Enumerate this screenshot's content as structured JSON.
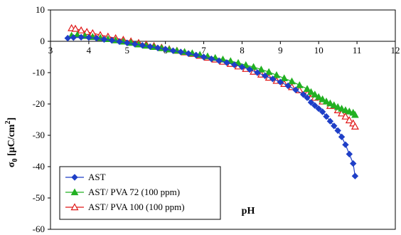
{
  "chart_data": {
    "type": "scatter",
    "xlabel": "pH",
    "ylabel_main": "σ",
    "ylabel_sub": "0",
    "ylabel_rest": " [μC/cm",
    "ylabel_sup": "2",
    "ylabel_end": "]",
    "xlim": [
      3,
      12
    ],
    "ylim": [
      -60,
      10
    ],
    "x_ticks": [
      3,
      4,
      5,
      6,
      7,
      8,
      9,
      10,
      11,
      12
    ],
    "y_ticks": [
      10,
      0,
      -10,
      -20,
      -30,
      -40,
      -50,
      -60
    ],
    "grid": false,
    "legend_position": "bottom-left",
    "series": [
      {
        "name": "AST",
        "color": "#1f3fc7",
        "marker": "diamond",
        "x": [
          3.45,
          3.6,
          3.8,
          4.0,
          4.2,
          4.4,
          4.6,
          4.8,
          5.0,
          5.2,
          5.4,
          5.6,
          5.8,
          6.0,
          6.2,
          6.4,
          6.6,
          6.8,
          7.0,
          7.2,
          7.4,
          7.6,
          7.8,
          8.0,
          8.2,
          8.4,
          8.6,
          8.8,
          9.0,
          9.2,
          9.4,
          9.6,
          9.7,
          9.8,
          9.9,
          10.0,
          10.1,
          10.2,
          10.3,
          10.4,
          10.5,
          10.6,
          10.7,
          10.8,
          10.9,
          10.95
        ],
        "y": [
          1.0,
          1.2,
          1.3,
          1.2,
          1.0,
          0.6,
          0.3,
          -0.1,
          -0.5,
          -0.9,
          -1.3,
          -1.7,
          -2.1,
          -2.5,
          -3.0,
          -3.4,
          -3.9,
          -4.4,
          -5.0,
          -5.6,
          -6.2,
          -6.8,
          -7.5,
          -8.2,
          -9.0,
          -10.0,
          -11.0,
          -12.0,
          -13.0,
          -14.2,
          -15.5,
          -17.0,
          -18.0,
          -19.5,
          -20.5,
          -21.5,
          -22.5,
          -24.0,
          -25.5,
          -27.0,
          -28.5,
          -30.5,
          -33.0,
          -36.0,
          -39.0,
          -43.0
        ]
      },
      {
        "name": "AST/ PVA 72 (100 ppm)",
        "color": "#22b022",
        "marker": "triangle-filled",
        "x": [
          3.55,
          3.7,
          3.9,
          4.1,
          4.3,
          4.5,
          4.7,
          4.9,
          5.1,
          5.3,
          5.5,
          5.7,
          5.9,
          6.1,
          6.3,
          6.5,
          6.7,
          6.9,
          7.1,
          7.3,
          7.5,
          7.7,
          7.9,
          8.1,
          8.3,
          8.5,
          8.7,
          8.9,
          9.1,
          9.3,
          9.5,
          9.7,
          9.8,
          9.9,
          10.0,
          10.1,
          10.2,
          10.3,
          10.4,
          10.5,
          10.6,
          10.7,
          10.8,
          10.9,
          10.95
        ],
        "y": [
          1.8,
          2.0,
          1.7,
          1.4,
          1.1,
          0.7,
          0.3,
          -0.1,
          -0.5,
          -1.0,
          -1.4,
          -1.8,
          -2.2,
          -2.6,
          -3.0,
          -3.4,
          -3.8,
          -4.3,
          -4.8,
          -5.3,
          -5.8,
          -6.3,
          -6.9,
          -7.6,
          -8.2,
          -9.0,
          -9.8,
          -10.8,
          -11.8,
          -12.8,
          -14.0,
          -15.2,
          -16.2,
          -17.0,
          -17.8,
          -18.5,
          -19.2,
          -19.8,
          -20.4,
          -21.0,
          -21.5,
          -22.0,
          -22.4,
          -22.8,
          -23.5
        ]
      },
      {
        "name": "AST/ PVA 100 (100 ppm)",
        "color": "#e01818",
        "marker": "triangle-open",
        "x": [
          3.55,
          3.65,
          3.8,
          3.95,
          4.1,
          4.3,
          4.5,
          4.7,
          4.9,
          5.1,
          5.3,
          5.5,
          5.7,
          5.9,
          6.1,
          6.3,
          6.5,
          6.7,
          6.9,
          7.1,
          7.3,
          7.5,
          7.7,
          7.9,
          8.1,
          8.3,
          8.5,
          8.7,
          8.9,
          9.1,
          9.3,
          9.5,
          9.7,
          9.9,
          10.1,
          10.3,
          10.5,
          10.6,
          10.7,
          10.8,
          10.9,
          10.95
        ],
        "y": [
          4.2,
          4.0,
          3.5,
          3.0,
          2.6,
          2.0,
          1.5,
          1.0,
          0.5,
          0.0,
          -0.5,
          -1.0,
          -1.5,
          -2.0,
          -2.5,
          -3.0,
          -3.5,
          -4.0,
          -4.6,
          -5.2,
          -5.8,
          -6.5,
          -7.2,
          -8.0,
          -8.8,
          -9.7,
          -10.6,
          -11.6,
          -12.6,
          -13.6,
          -14.6,
          -15.6,
          -16.8,
          -18.0,
          -19.2,
          -20.6,
          -22.0,
          -23.0,
          -24.0,
          -25.2,
          -26.2,
          -27.2
        ]
      }
    ]
  }
}
